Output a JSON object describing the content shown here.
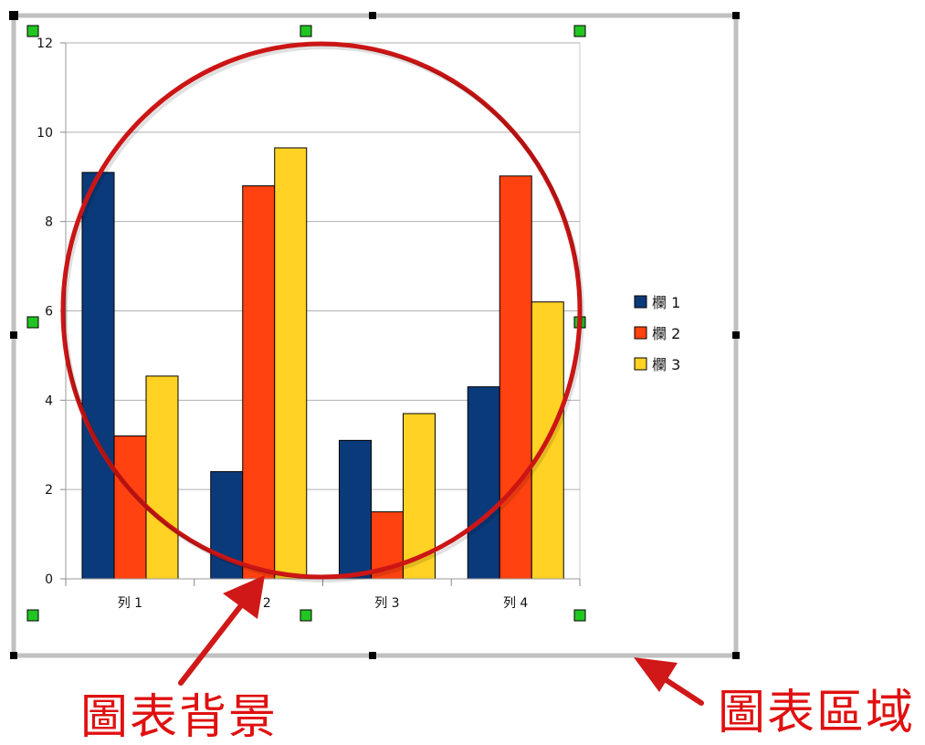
{
  "annotations": {
    "chart_background_label": "圖表背景",
    "chart_area_label": "圖表區域"
  },
  "colors": {
    "series1": "#0b3a7a",
    "series2": "#ff4210",
    "series3": "#ffd224",
    "annotation": "#e01010",
    "gridline": "#b0b0b0",
    "frame": "#c0c0c0",
    "handle": "#22c522"
  },
  "chart_data": {
    "type": "bar",
    "categories": [
      "列 1",
      "列 2",
      "列 3",
      "列 4"
    ],
    "series": [
      {
        "name": "欄 1",
        "values": [
          9.1,
          2.4,
          3.1,
          4.3
        ]
      },
      {
        "name": "欄 2",
        "values": [
          3.2,
          8.8,
          1.5,
          9.02
        ]
      },
      {
        "name": "欄 3",
        "values": [
          4.54,
          9.65,
          3.7,
          6.2
        ]
      }
    ],
    "ylim": [
      0,
      12
    ],
    "yticks": [
      "0",
      "2",
      "4",
      "6",
      "8",
      "10",
      "12"
    ],
    "grid": true,
    "legend": "right"
  }
}
